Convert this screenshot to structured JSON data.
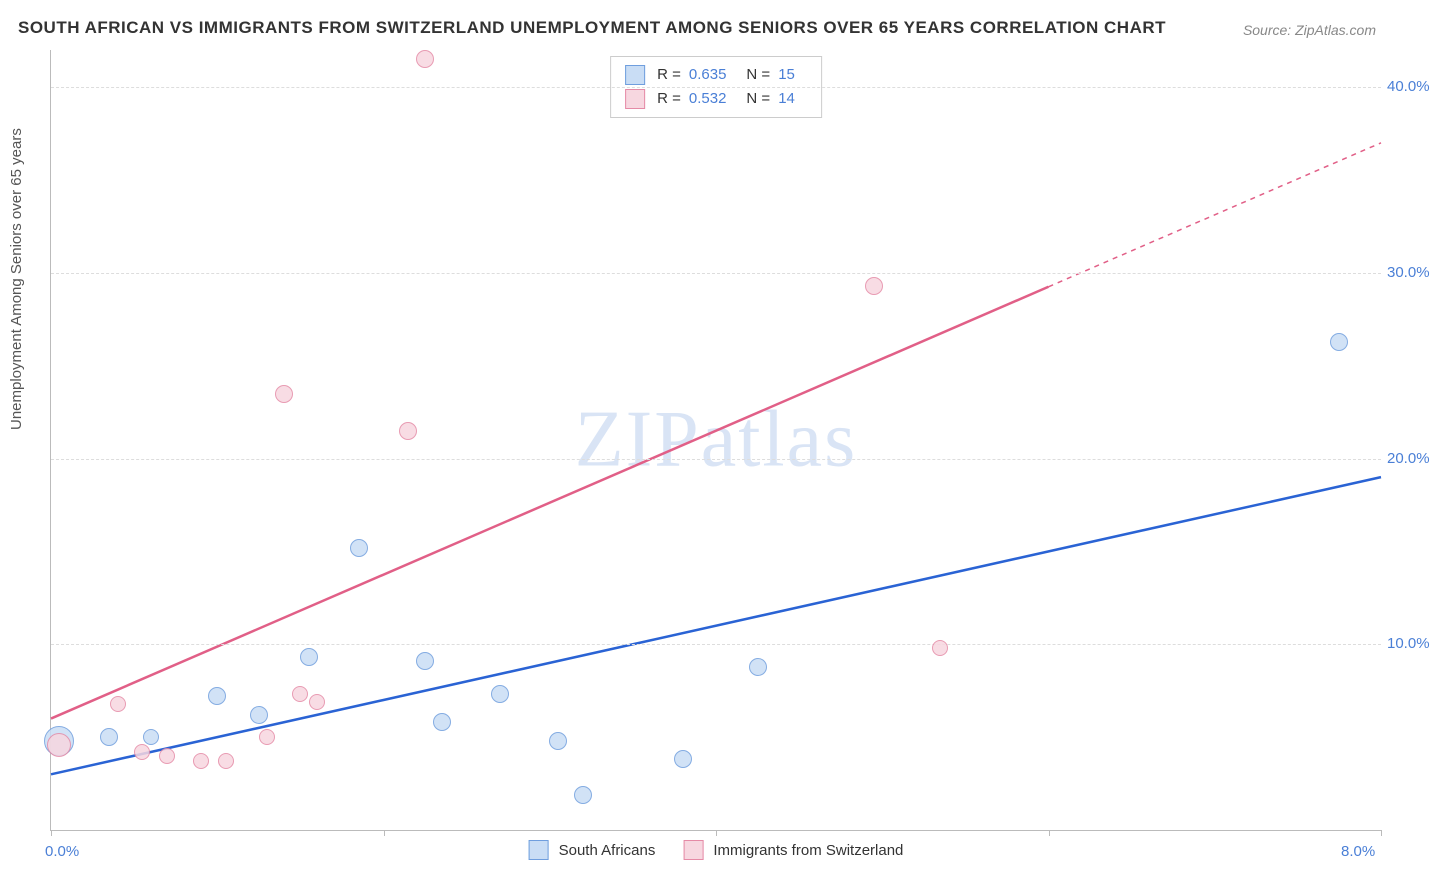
{
  "title": "SOUTH AFRICAN VS IMMIGRANTS FROM SWITZERLAND UNEMPLOYMENT AMONG SENIORS OVER 65 YEARS CORRELATION CHART",
  "source": "Source: ZipAtlas.com",
  "watermark": "ZIPatlas",
  "y_axis_label": "Unemployment Among Seniors over 65 years",
  "chart": {
    "type": "scatter",
    "xlim": [
      0,
      8
    ],
    "ylim": [
      0,
      42
    ],
    "x_ticks": [
      0,
      2,
      4,
      6,
      8
    ],
    "x_tick_labels": [
      "0.0%",
      "",
      "",
      "",
      "8.0%"
    ],
    "y_ticks": [
      10,
      20,
      30,
      40
    ],
    "y_tick_labels": [
      "10.0%",
      "20.0%",
      "30.0%",
      "40.0%"
    ],
    "grid_color": "#dddddd",
    "background_color": "#ffffff",
    "axis_color": "#bbbbbb",
    "tick_label_color": "#4a7fd6",
    "series": [
      {
        "name": "South Africans",
        "fill": "#c9ddf5",
        "stroke": "#6f9ede",
        "trend_color": "#2a63d4",
        "R": "0.635",
        "N": "15",
        "trend": {
          "x1": 0,
          "y1": 3.0,
          "x2": 8,
          "y2": 19.0,
          "dashed": false
        },
        "points": [
          {
            "x": 0.05,
            "y": 4.8,
            "r": 14
          },
          {
            "x": 0.35,
            "y": 5.0,
            "r": 8
          },
          {
            "x": 0.6,
            "y": 5.0,
            "r": 7
          },
          {
            "x": 1.0,
            "y": 7.2,
            "r": 8
          },
          {
            "x": 1.25,
            "y": 6.2,
            "r": 8
          },
          {
            "x": 1.55,
            "y": 9.3,
            "r": 8
          },
          {
            "x": 1.85,
            "y": 15.2,
            "r": 8
          },
          {
            "x": 2.25,
            "y": 9.1,
            "r": 8
          },
          {
            "x": 2.35,
            "y": 5.8,
            "r": 8
          },
          {
            "x": 2.7,
            "y": 7.3,
            "r": 8
          },
          {
            "x": 3.05,
            "y": 4.8,
            "r": 8
          },
          {
            "x": 3.2,
            "y": 1.9,
            "r": 8
          },
          {
            "x": 3.8,
            "y": 3.8,
            "r": 8
          },
          {
            "x": 4.25,
            "y": 8.8,
            "r": 8
          },
          {
            "x": 7.75,
            "y": 26.3,
            "r": 8
          }
        ]
      },
      {
        "name": "Immigrants from Switzerland",
        "fill": "#f7d7e0",
        "stroke": "#e58aa6",
        "trend_color": "#e15f87",
        "R": "0.532",
        "N": "14",
        "trend": {
          "x1": 0,
          "y1": 6.0,
          "x2": 8,
          "y2": 37.0,
          "dash_from_x": 6.0
        },
        "points": [
          {
            "x": 0.05,
            "y": 4.6,
            "r": 11
          },
          {
            "x": 0.4,
            "y": 6.8,
            "r": 7
          },
          {
            "x": 0.55,
            "y": 4.2,
            "r": 7
          },
          {
            "x": 0.7,
            "y": 4.0,
            "r": 7
          },
          {
            "x": 0.9,
            "y": 3.7,
            "r": 7
          },
          {
            "x": 1.05,
            "y": 3.7,
            "r": 7
          },
          {
            "x": 1.3,
            "y": 5.0,
            "r": 7
          },
          {
            "x": 1.4,
            "y": 23.5,
            "r": 8
          },
          {
            "x": 1.5,
            "y": 7.3,
            "r": 7
          },
          {
            "x": 1.6,
            "y": 6.9,
            "r": 7
          },
          {
            "x": 2.15,
            "y": 21.5,
            "r": 8
          },
          {
            "x": 2.25,
            "y": 41.5,
            "r": 8
          },
          {
            "x": 4.95,
            "y": 29.3,
            "r": 8
          },
          {
            "x": 5.35,
            "y": 9.8,
            "r": 7
          }
        ]
      }
    ]
  },
  "legend_bottom": {
    "item1": "South Africans",
    "item2": "Immigrants from Switzerland"
  },
  "legend_stats_labels": {
    "R": "R =",
    "N": "N ="
  }
}
